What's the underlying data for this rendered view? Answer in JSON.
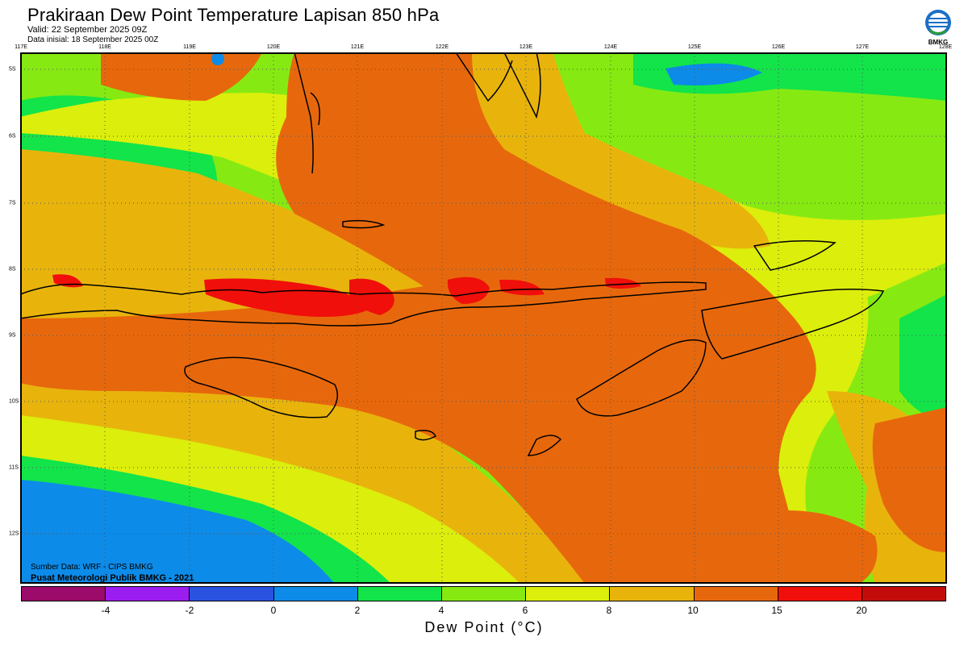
{
  "header": {
    "title": "Prakiraan Dew Point Temperature Lapisan 850 hPa",
    "valid": "Valid: 22 September 2025 09Z",
    "init": "Data inisial: 18 September 2025 00Z"
  },
  "logo": {
    "text": "BMKG",
    "icon": "bmkg-logo"
  },
  "axes": {
    "lon_labels": [
      "117E",
      "118E",
      "119E",
      "120E",
      "121E",
      "122E",
      "123E",
      "124E",
      "125E",
      "126E",
      "127E",
      "128E"
    ],
    "lat_labels": [
      "5S",
      "6S",
      "7S",
      "8S",
      "9S",
      "10S",
      "11S",
      "12S"
    ],
    "grid": true
  },
  "footer": {
    "source": "Sumber Data: WRF - CIPS BMKG",
    "org": "Pusat Meteorologi Publik BMKG - 2021"
  },
  "colorbar": {
    "label": "Dew Point (°C)",
    "colors": [
      "#9c0a6a",
      "#9c1df0",
      "#2a52e0",
      "#0d8be8",
      "#12e44a",
      "#86ea12",
      "#dcee0c",
      "#e8b40c",
      "#e7680c",
      "#f00f0a",
      "#c10c0a"
    ],
    "ticks": [
      "-4",
      "-2",
      "0",
      "2",
      "4",
      "6",
      "8",
      "10",
      "15",
      "20"
    ]
  }
}
